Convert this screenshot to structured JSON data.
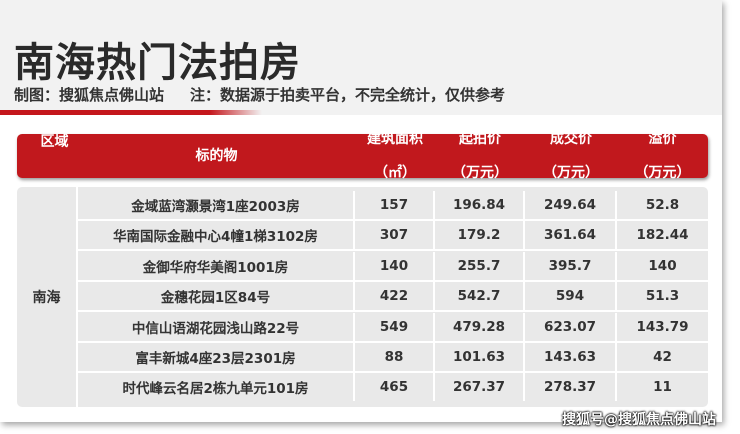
{
  "title": "南海热门法拍房",
  "credit": "制图：搜狐焦点佛山站",
  "note": "注：数据源于拍卖平台，不完全统计，仅供参考",
  "columns": [
    {
      "l1": "区域",
      "l2": ""
    },
    {
      "l1": "标的物",
      "l2": ""
    },
    {
      "l1": "建筑面积",
      "l2": "（㎡）"
    },
    {
      "l1": "起拍价",
      "l2": "（万元）"
    },
    {
      "l1": "成交价",
      "l2": "（万元）"
    },
    {
      "l1": "溢价",
      "l2": "（万元）"
    }
  ],
  "region": "南海",
  "rows": [
    [
      "金域蓝湾灏景湾1座2003房",
      "157",
      "196.84",
      "249.64",
      "52.8"
    ],
    [
      "华南国际金融中心4幢1梯3102房",
      "307",
      "179.2",
      "361.64",
      "182.44"
    ],
    [
      "金御华府华美阁1001房",
      "140",
      "255.7",
      "395.7",
      "140"
    ],
    [
      "金穗花园1区84号",
      "422",
      "542.7",
      "594",
      "51.3"
    ],
    [
      "中信山语湖花园浅山路22号",
      "549",
      "479.28",
      "623.07",
      "143.79"
    ],
    [
      "富丰新城4座23层2301房",
      "88",
      "101.63",
      "143.63",
      "42"
    ],
    [
      "时代峰云名居2栋九单元101房",
      "465",
      "267.37",
      "278.37",
      "11"
    ]
  ],
  "watermark": "搜狐号@搜狐焦点佛山站",
  "colors": {
    "accent": "#c1181d"
  }
}
